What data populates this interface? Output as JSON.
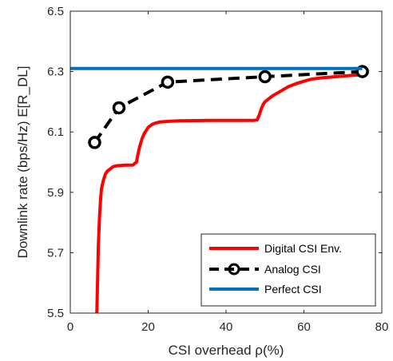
{
  "chart_data": {
    "type": "line",
    "xlabel": "CSI overhead ρ(%)",
    "ylabel": "Downlink rate (bps/Hz) E[R_DL]",
    "xlim": [
      0,
      80
    ],
    "ylim": [
      5.5,
      6.5
    ],
    "xticks": [
      0,
      20,
      40,
      60,
      80
    ],
    "yticks": [
      5.5,
      5.7,
      5.9,
      6.1,
      6.3,
      6.5
    ],
    "xtick_labels": [
      "0",
      "20",
      "40",
      "60",
      "80"
    ],
    "ytick_labels": [
      "5.5",
      "5.7",
      "5.9",
      "6.1",
      "6.3",
      "6.5"
    ],
    "grid": false,
    "legend_position": "bottom-right",
    "series": [
      {
        "name": "Digital CSI Env.",
        "color": "#ff0000",
        "style": "solid",
        "x": [
          6.8,
          7.0,
          7.2,
          7.5,
          7.8,
          8.0,
          8.5,
          9.0,
          9.5,
          10.0,
          11.0,
          12.0,
          13.0,
          14.0,
          15.0,
          16.0,
          16.5,
          17.0,
          17.3,
          17.6,
          18.0,
          18.5,
          19.0,
          19.5,
          20.0,
          21.0,
          22.0,
          23.0,
          25.0,
          28.0,
          35.0,
          40.0,
          45.0,
          47.0,
          48.0,
          48.5,
          49.0,
          49.5,
          50.0,
          51.0,
          52.0,
          54.0,
          56.0,
          58.0,
          60.0,
          62.0,
          65.0,
          70.0,
          75.0
        ],
        "y": [
          5.5,
          5.6,
          5.72,
          5.82,
          5.88,
          5.91,
          5.94,
          5.96,
          5.97,
          5.975,
          5.985,
          5.988,
          5.989,
          5.99,
          5.99,
          5.99,
          5.995,
          6.0,
          6.02,
          6.04,
          6.06,
          6.08,
          6.095,
          6.105,
          6.115,
          6.125,
          6.13,
          6.133,
          6.135,
          6.137,
          6.138,
          6.138,
          6.138,
          6.138,
          6.14,
          6.155,
          6.175,
          6.19,
          6.2,
          6.21,
          6.22,
          6.235,
          6.25,
          6.26,
          6.268,
          6.275,
          6.28,
          6.285,
          6.29
        ]
      },
      {
        "name": "Analog CSI",
        "color": "#000000",
        "style": "dashed",
        "markers": true,
        "x": [
          6.25,
          12.5,
          25,
          50,
          75
        ],
        "y": [
          6.065,
          6.18,
          6.265,
          6.283,
          6.3
        ]
      },
      {
        "name": "Perfect CSI",
        "color": "#0072bd",
        "style": "solid",
        "x": [
          0,
          75
        ],
        "y": [
          6.31,
          6.31
        ]
      }
    ]
  }
}
